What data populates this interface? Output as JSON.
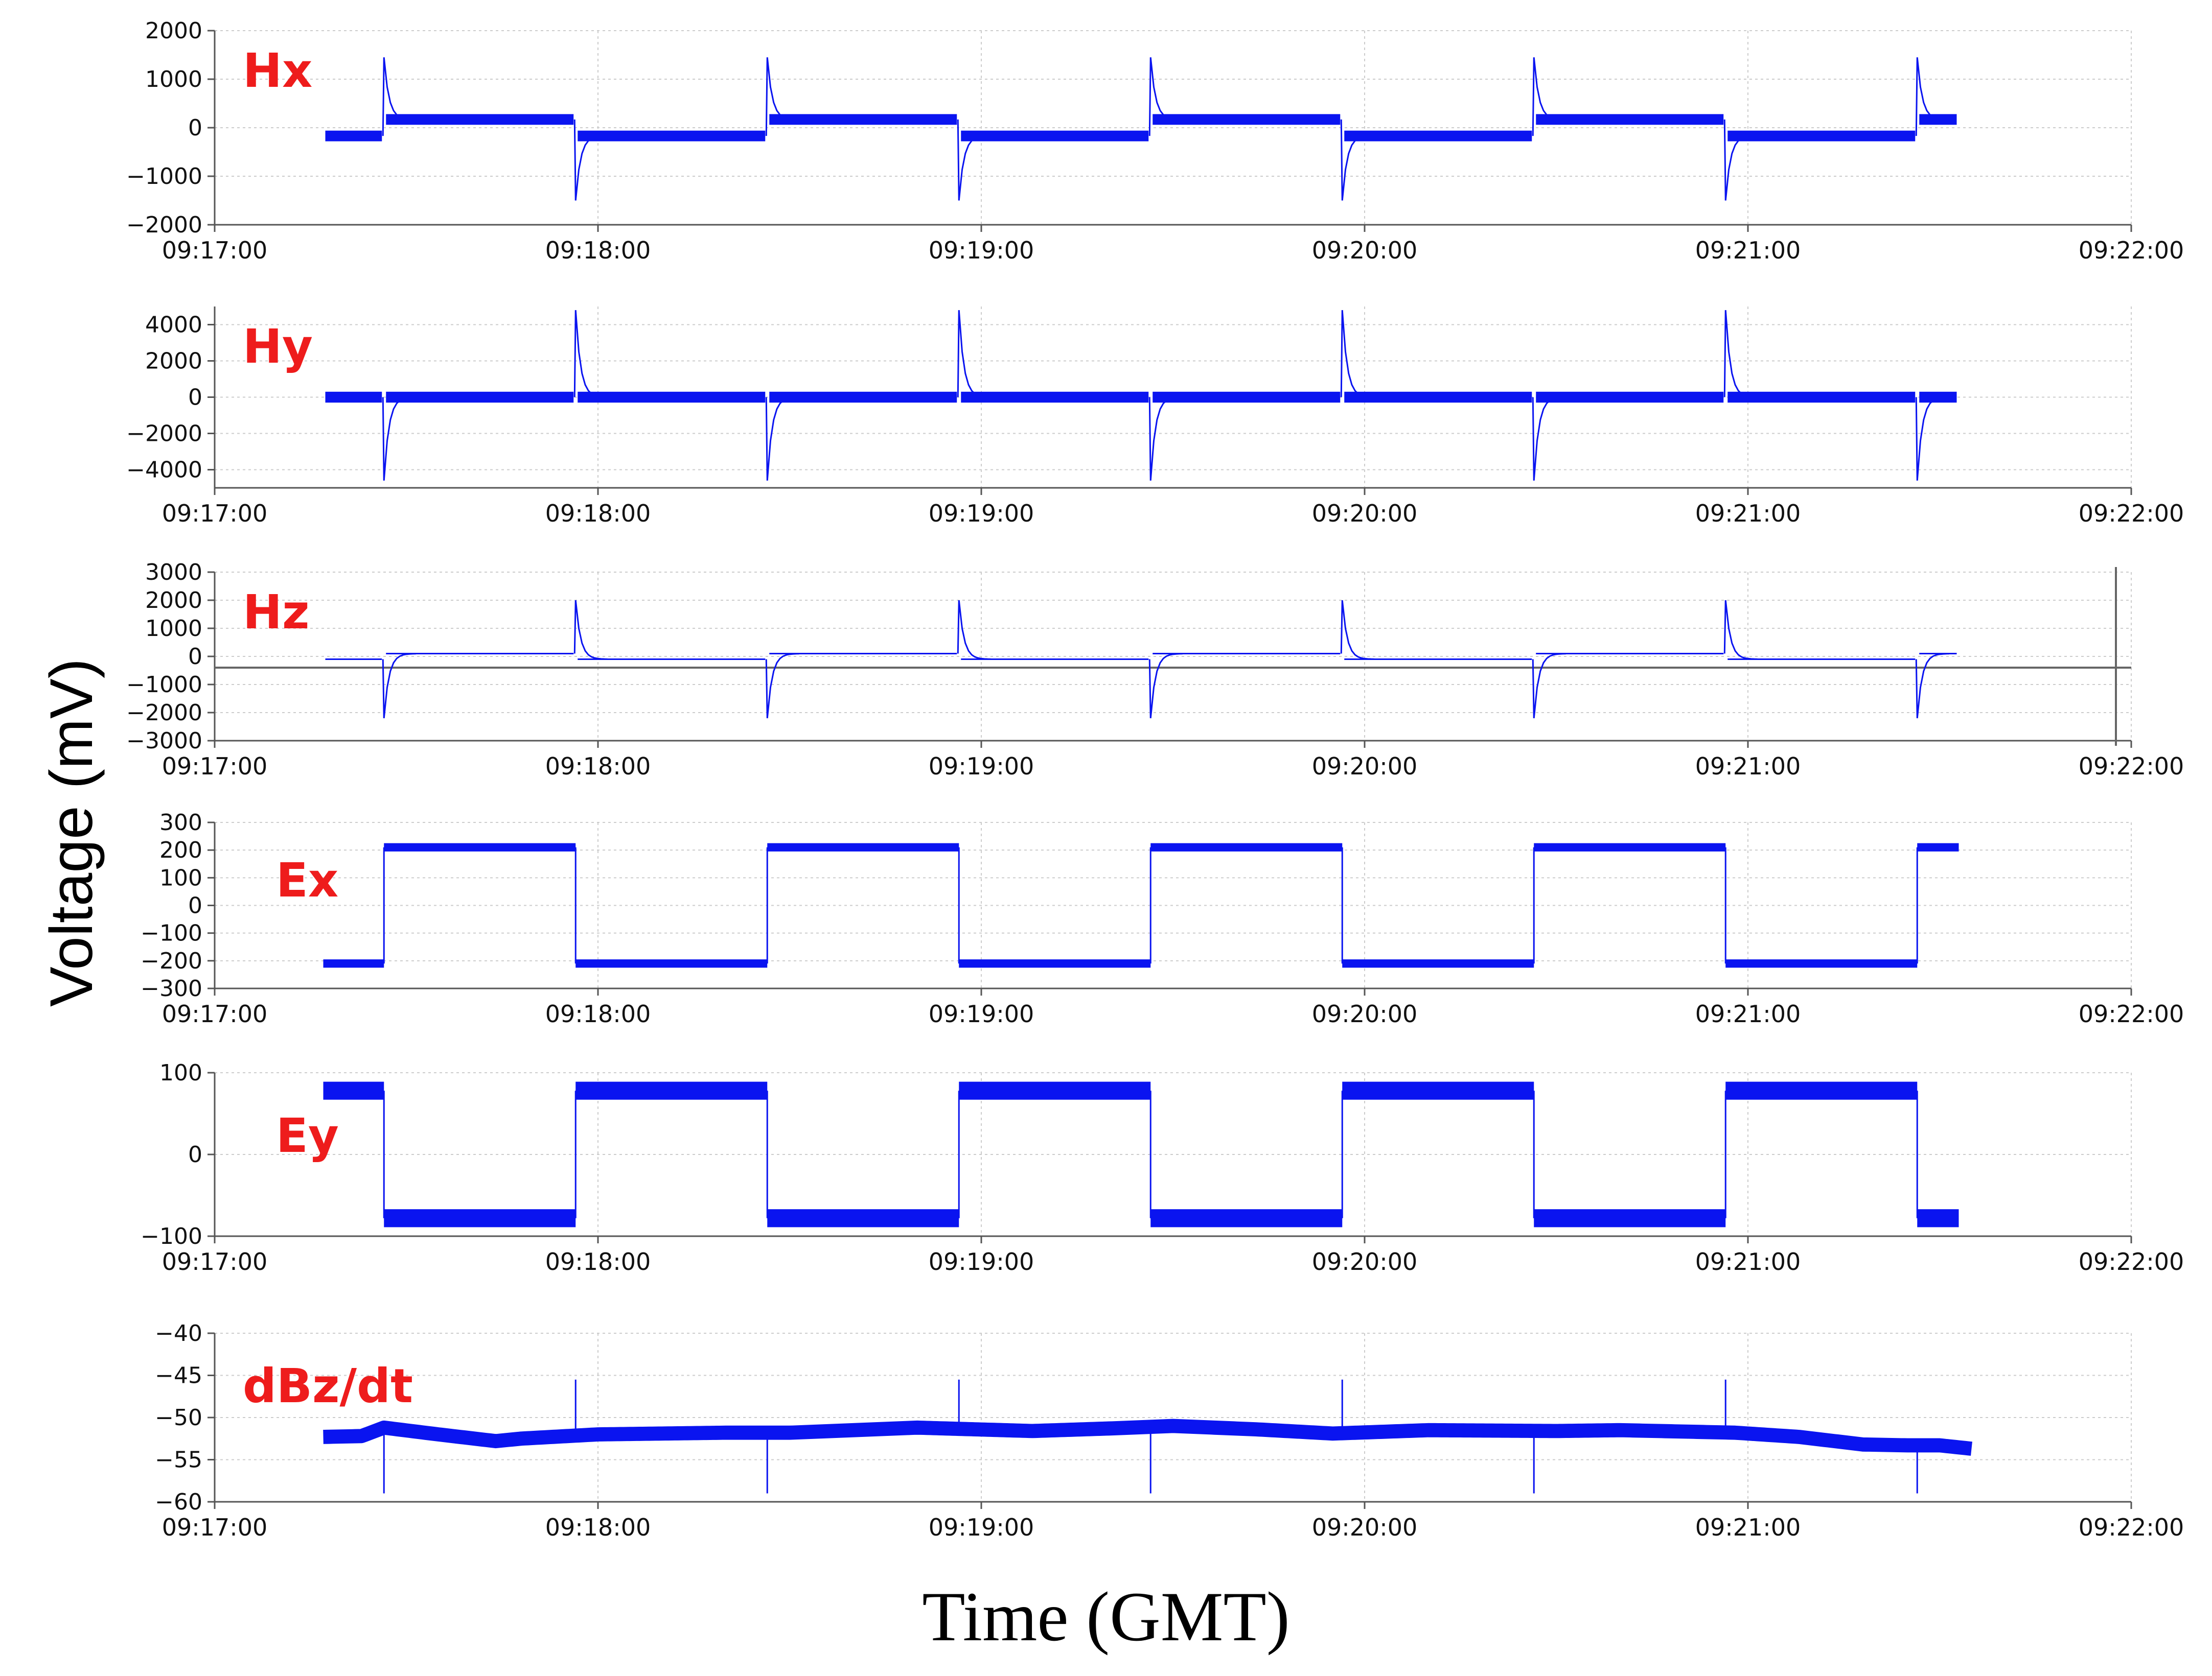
{
  "figure": {
    "ylabel": "Voltage (mV)",
    "xlabel": "Time (GMT)",
    "colors": {
      "trace": "#0a14f0",
      "label": "#ee1c1c",
      "axis": "#555555",
      "grid": "#cccccc"
    }
  },
  "chart_data": [
    {
      "type": "line",
      "title": "Hx",
      "ylabel": "Voltage (mV)",
      "xlabel": "Time (GMT)",
      "xlim": [
        "09:17:00",
        "09:22:00"
      ],
      "xticks": [
        "09:17:00",
        "09:18:00",
        "09:19:00",
        "09:20:00",
        "09:21:00",
        "09:22:00"
      ],
      "ylim": [
        -2000,
        2000
      ],
      "yticks": [
        2000,
        1000,
        0,
        -1000,
        -2000
      ],
      "yticklabels": [
        "2000",
        "1000",
        "0",
        "−1000",
        "−2000"
      ],
      "signal": {
        "shape": "spikes",
        "t_start_s": 17,
        "t_end_s": 273,
        "half_period_s": 30,
        "first_transition_s": 26.5,
        "level": 170,
        "spike_up": 1450,
        "spike_down": -1500,
        "start_sign": -1,
        "noise_band": 220
      }
    },
    {
      "type": "line",
      "title": "Hy",
      "ylabel": "Voltage (mV)",
      "xlabel": "Time (GMT)",
      "xlim": [
        "09:17:00",
        "09:22:00"
      ],
      "xticks": [
        "09:17:00",
        "09:18:00",
        "09:19:00",
        "09:20:00",
        "09:21:00",
        "09:22:00"
      ],
      "ylim": [
        -5000,
        5000
      ],
      "yticks": [
        4000,
        2000,
        0,
        -2000,
        -4000
      ],
      "yticklabels": [
        "4000",
        "2000",
        "0",
        "−2000",
        "−4000"
      ],
      "signal": {
        "shape": "spikes",
        "t_start_s": 17,
        "t_end_s": 273,
        "half_period_s": 30,
        "first_transition_s": 26.5,
        "level": 0,
        "spike_up": 4800,
        "spike_down": -4600,
        "start_sign": 1,
        "noise_band": 600
      }
    },
    {
      "type": "line",
      "title": "Hz",
      "ylabel": "Voltage (mV)",
      "xlabel": "Time (GMT)",
      "xlim": [
        "09:17:00",
        "09:22:00"
      ],
      "xticks": [
        "09:17:00",
        "09:18:00",
        "09:19:00",
        "09:20:00",
        "09:21:00",
        "09:22:00"
      ],
      "ylim": [
        -3000,
        3000
      ],
      "yticks": [
        3000,
        2000,
        1000,
        0,
        -1000,
        -2000,
        -3000
      ],
      "yticklabels": [
        "3000",
        "2000",
        "1000",
        "0",
        "−1000",
        "−2000",
        "−3000"
      ],
      "signal": {
        "shape": "spikes",
        "t_start_s": 17,
        "t_end_s": 273,
        "half_period_s": 30,
        "first_transition_s": 26.5,
        "level": -100,
        "spike_up": 2000,
        "spike_down": -2200,
        "start_sign": 1,
        "noise_band": 20
      },
      "hline": -400
    },
    {
      "type": "line",
      "title": "Ex",
      "ylabel": "Voltage (mV)",
      "xlabel": "Time (GMT)",
      "xlim": [
        "09:17:00",
        "09:22:00"
      ],
      "xticks": [
        "09:17:00",
        "09:18:00",
        "09:19:00",
        "09:20:00",
        "09:21:00",
        "09:22:00"
      ],
      "ylim": [
        -300,
        300
      ],
      "yticks": [
        300,
        200,
        100,
        0,
        -100,
        -200,
        -300
      ],
      "yticklabels": [
        "300",
        "200",
        "100",
        "0",
        "−100",
        "−200",
        "−300"
      ],
      "signal": {
        "shape": "square",
        "t_start_s": 17,
        "t_end_s": 273,
        "half_period_s": 30,
        "first_transition_s": 26.5,
        "level": 210,
        "start_sign": -1,
        "noise_band": 30
      }
    },
    {
      "type": "line",
      "title": "Ey",
      "ylabel": "Voltage (mV)",
      "xlabel": "Time (GMT)",
      "xlim": [
        "09:17:00",
        "09:22:00"
      ],
      "xticks": [
        "09:17:00",
        "09:18:00",
        "09:19:00",
        "09:20:00",
        "09:21:00",
        "09:22:00"
      ],
      "ylim": [
        -100,
        100
      ],
      "yticks": [
        100,
        0,
        -100
      ],
      "yticklabels": [
        "100",
        "0",
        "−100"
      ],
      "signal": {
        "shape": "square",
        "t_start_s": 17,
        "t_end_s": 273,
        "half_period_s": 30,
        "first_transition_s": 26.5,
        "level": 78,
        "start_sign": 1,
        "noise_band": 22
      }
    },
    {
      "type": "line",
      "title": "dBz/dt",
      "ylabel": "Voltage (mV)",
      "xlabel": "Time (GMT)",
      "xlim": [
        "09:17:00",
        "09:22:00"
      ],
      "xticks": [
        "09:17:00",
        "09:18:00",
        "09:19:00",
        "09:20:00",
        "09:21:00",
        "09:22:00"
      ],
      "ylim": [
        -60,
        -40
      ],
      "yticks": [
        -40,
        -45,
        -50,
        -55,
        -60
      ],
      "yticklabels": [
        "−40",
        "−45",
        "−50",
        "−55",
        "−60"
      ],
      "signal": {
        "shape": "drift",
        "t_start_s": 17,
        "t_end_s": 275,
        "half_period_s": 30,
        "first_transition_s": 26.5,
        "start_sign": 1,
        "noise_band": 1.2,
        "spike_up": -45.5,
        "spike_down": -59,
        "baseline": [
          [
            17,
            -52.3
          ],
          [
            23,
            -52.2
          ],
          [
            26.5,
            -51.2
          ],
          [
            35,
            -52
          ],
          [
            44,
            -52.8
          ],
          [
            48,
            -52.5
          ],
          [
            60,
            -52
          ],
          [
            80,
            -51.8
          ],
          [
            90,
            -51.8
          ],
          [
            100,
            -51.5
          ],
          [
            110,
            -51.2
          ],
          [
            128,
            -51.6
          ],
          [
            140,
            -51.3
          ],
          [
            150,
            -51
          ],
          [
            163,
            -51.4
          ],
          [
            175,
            -51.9
          ],
          [
            190,
            -51.5
          ],
          [
            210,
            -51.6
          ],
          [
            220,
            -51.5
          ],
          [
            238,
            -51.8
          ],
          [
            248,
            -52.3
          ],
          [
            258,
            -53.2
          ],
          [
            265,
            -53.3
          ],
          [
            270,
            -53.3
          ],
          [
            275,
            -53.7
          ]
        ]
      }
    }
  ]
}
